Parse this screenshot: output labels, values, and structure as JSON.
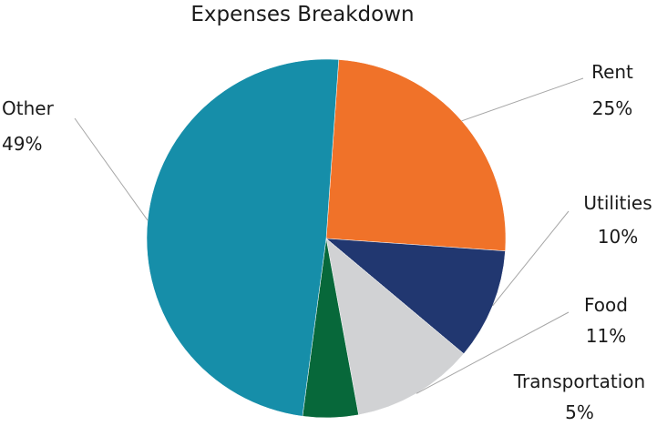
{
  "chart_data": {
    "type": "pie",
    "title": "Expenses Breakdown",
    "slices": [
      {
        "label": "Rent",
        "value": 25,
        "value_label": "25%",
        "color": "#f07229"
      },
      {
        "label": "Utilities",
        "value": 10,
        "value_label": "10%",
        "color": "#213770"
      },
      {
        "label": "Food",
        "value": 11,
        "value_label": "11%",
        "color": "#d1d2d4"
      },
      {
        "label": "Transportation",
        "value": 5,
        "value_label": "5%",
        "color": "#07683a"
      },
      {
        "label": "Other",
        "value": 49,
        "value_label": "49%",
        "color": "#168ea9"
      }
    ]
  }
}
